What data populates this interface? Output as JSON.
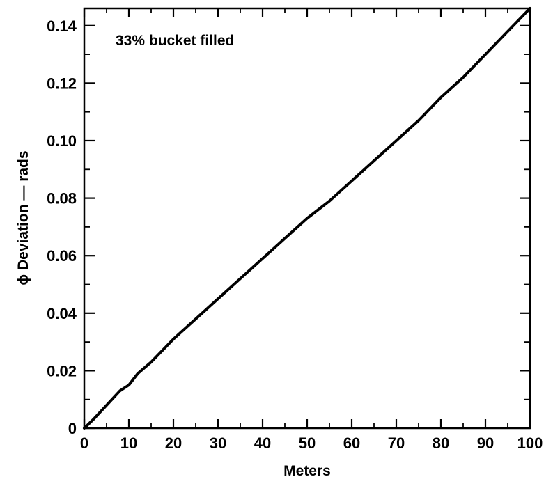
{
  "chart_data": {
    "type": "line",
    "title": "",
    "annotation": "33% bucket filled",
    "xlabel": "Meters",
    "ylabel": "ϕ Deviation — rads",
    "xlim": [
      0,
      100
    ],
    "ylim": [
      0,
      0.146
    ],
    "grid": false,
    "x_ticks": [
      0,
      10,
      20,
      30,
      40,
      50,
      60,
      70,
      80,
      90,
      100
    ],
    "x_tick_labels": [
      "0",
      "10",
      "20",
      "30",
      "40",
      "50",
      "60",
      "70",
      "80",
      "90",
      "100"
    ],
    "y_ticks": [
      0,
      0.02,
      0.04,
      0.06,
      0.08,
      0.1,
      0.12,
      0.14
    ],
    "y_tick_labels": [
      "0",
      "0.02",
      "0.04",
      "0.06",
      "0.08",
      "0.10",
      "0.12",
      "0.14"
    ],
    "series": [
      {
        "color": "#000000",
        "x": [
          0,
          2,
          5,
          8,
          10,
          12,
          15,
          20,
          25,
          30,
          35,
          40,
          45,
          50,
          55,
          60,
          65,
          70,
          75,
          80,
          85,
          90,
          95,
          100
        ],
        "y": [
          0,
          0.003,
          0.008,
          0.013,
          0.015,
          0.019,
          0.023,
          0.031,
          0.038,
          0.045,
          0.052,
          0.059,
          0.066,
          0.073,
          0.079,
          0.086,
          0.093,
          0.1,
          0.107,
          0.115,
          0.122,
          0.13,
          0.138,
          0.146
        ]
      }
    ]
  }
}
